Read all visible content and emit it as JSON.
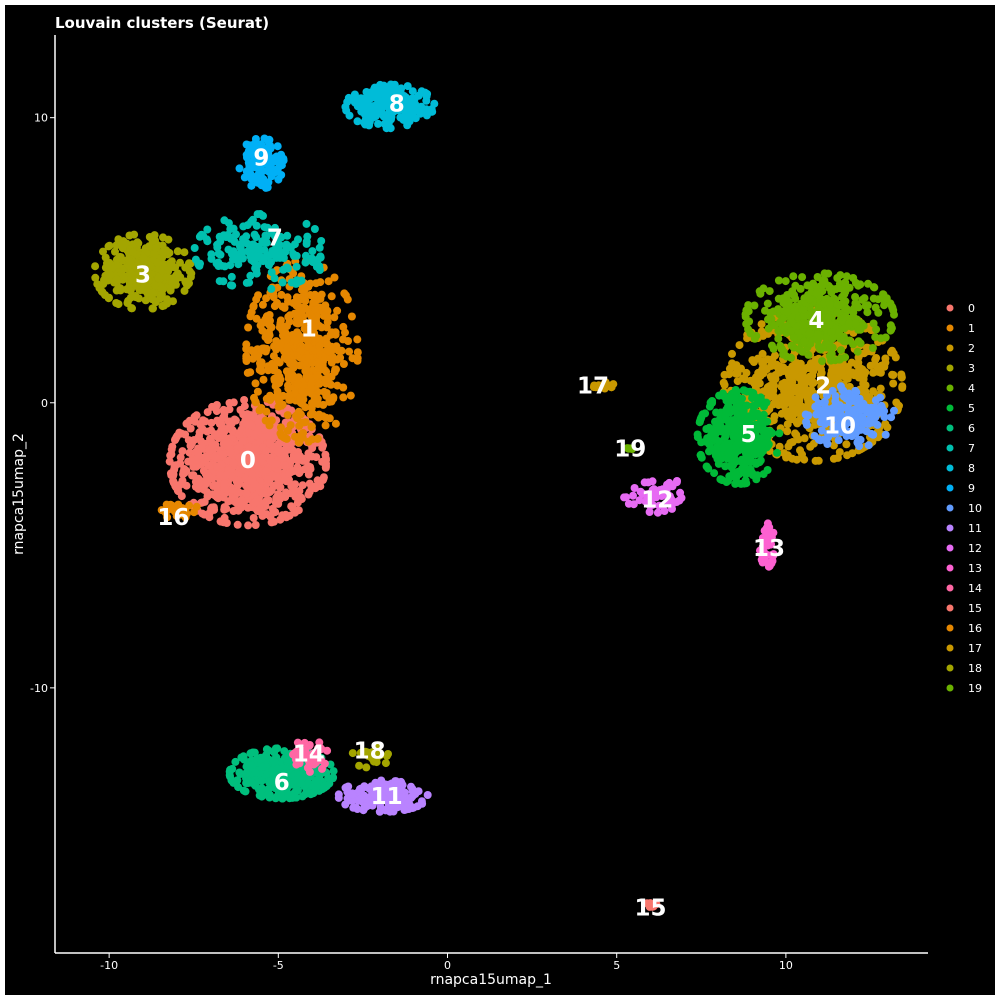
{
  "chart_data": {
    "type": "scatter",
    "title": "Louvain clusters (Seurat)",
    "xlabel": "rnapca15umap_1",
    "ylabel": "rnapca15umap_2",
    "xlim": [
      -11.6,
      14.2
    ],
    "ylim": [
      -19.3,
      12.9
    ],
    "xticks": [
      -10,
      -5,
      0,
      5,
      10
    ],
    "yticks": [
      -10,
      0,
      10
    ],
    "xtick_labels": [
      "-10",
      "-5",
      "0",
      "5",
      "10"
    ],
    "ytick_labels": [
      "-10",
      "0",
      "10"
    ],
    "legend_position": "right",
    "grid": false,
    "background": "#000000",
    "clusters": [
      {
        "name": "0",
        "color": "#F8766D",
        "label_x": -5.9,
        "label_y": -2.0,
        "cx": -5.9,
        "cy": -2.1,
        "sx": 1.05,
        "sy": 1.0,
        "n": 900
      },
      {
        "name": "1",
        "color": "#E58700",
        "label_x": -4.1,
        "label_y": 2.6,
        "cx": -4.3,
        "cy": 1.8,
        "sx": 0.75,
        "sy": 1.45,
        "n": 500
      },
      {
        "name": "2",
        "color": "#C99800",
        "label_x": 11.1,
        "label_y": 0.6,
        "cx": 10.8,
        "cy": 0.6,
        "sx": 1.2,
        "sy": 1.2,
        "n": 650
      },
      {
        "name": "3",
        "color": "#A3A500",
        "label_x": -9.0,
        "label_y": 4.5,
        "cx": -9.0,
        "cy": 4.6,
        "sx": 0.65,
        "sy": 0.6,
        "n": 350
      },
      {
        "name": "4",
        "color": "#6BB100",
        "label_x": 10.9,
        "label_y": 2.9,
        "cx": 11.0,
        "cy": 3.0,
        "sx": 1.0,
        "sy": 0.7,
        "n": 400
      },
      {
        "name": "5",
        "color": "#00BA38",
        "label_x": 8.9,
        "label_y": -1.1,
        "cx": 8.6,
        "cy": -1.2,
        "sx": 0.55,
        "sy": 0.75,
        "n": 350
      },
      {
        "name": "6",
        "color": "#00BF7D",
        "label_x": -4.9,
        "label_y": -13.3,
        "cx": -4.9,
        "cy": -13.0,
        "sx": 0.7,
        "sy": 0.4,
        "n": 350
      },
      {
        "name": "7",
        "color": "#00C0AF",
        "label_x": -5.1,
        "label_y": 5.8,
        "cx": -5.5,
        "cy": 5.3,
        "sx": 0.9,
        "sy": 0.6,
        "n": 180
      },
      {
        "name": "8",
        "color": "#00BCD8",
        "label_x": -1.5,
        "label_y": 10.5,
        "cx": -1.7,
        "cy": 10.4,
        "sx": 0.6,
        "sy": 0.35,
        "n": 200
      },
      {
        "name": "9",
        "color": "#00B0F6",
        "label_x": -5.5,
        "label_y": 8.6,
        "cx": -5.5,
        "cy": 8.4,
        "sx": 0.3,
        "sy": 0.4,
        "n": 120
      },
      {
        "name": "10",
        "color": "#619CFF",
        "label_x": 11.6,
        "label_y": -0.8,
        "cx": 11.9,
        "cy": -0.5,
        "sx": 0.6,
        "sy": 0.5,
        "n": 160
      },
      {
        "name": "11",
        "color": "#B983FF",
        "label_x": -1.8,
        "label_y": -13.8,
        "cx": -1.9,
        "cy": -13.8,
        "sx": 0.6,
        "sy": 0.25,
        "n": 180
      },
      {
        "name": "12",
        "color": "#E76BF3",
        "label_x": 6.2,
        "label_y": -3.4,
        "cx": 6.3,
        "cy": -3.2,
        "sx": 0.5,
        "sy": 0.3,
        "n": 60
      },
      {
        "name": "13",
        "color": "#FD61D1",
        "label_x": 9.5,
        "label_y": -5.1,
        "cx": 9.45,
        "cy": -5.0,
        "sx": 0.1,
        "sy": 0.35,
        "n": 50
      },
      {
        "name": "14",
        "color": "#FF67A4",
        "label_x": -4.1,
        "label_y": -12.3,
        "cx": -4.1,
        "cy": -12.4,
        "sx": 0.3,
        "sy": 0.25,
        "n": 45
      },
      {
        "name": "15",
        "color": "#F8766D",
        "label_x": 6.0,
        "label_y": -17.7,
        "cx": 6.0,
        "cy": -17.6,
        "sx": 0.08,
        "sy": 0.06,
        "n": 12
      },
      {
        "name": "16",
        "color": "#E58700",
        "label_x": -8.1,
        "label_y": -4.0,
        "cx": -7.9,
        "cy": -3.8,
        "sx": 0.25,
        "sy": 0.15,
        "n": 25
      },
      {
        "name": "17",
        "color": "#C99800",
        "label_x": 4.3,
        "label_y": 0.6,
        "cx": 4.5,
        "cy": 0.6,
        "sx": 0.2,
        "sy": 0.06,
        "n": 15
      },
      {
        "name": "18",
        "color": "#A3A500",
        "label_x": -2.3,
        "label_y": -12.2,
        "cx": -2.3,
        "cy": -12.4,
        "sx": 0.3,
        "sy": 0.18,
        "n": 25
      },
      {
        "name": "19",
        "color": "#6BB100",
        "label_x": 5.4,
        "label_y": -1.6,
        "cx": 5.35,
        "cy": -1.6,
        "sx": 0.05,
        "sy": 0.03,
        "n": 5
      }
    ]
  }
}
